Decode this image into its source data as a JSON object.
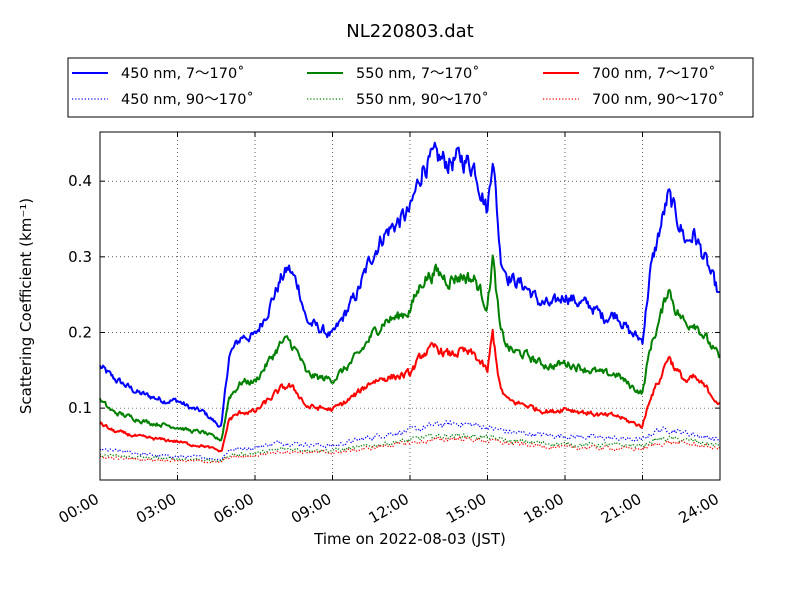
{
  "chart_data": {
    "type": "line",
    "title": "NL220803.dat",
    "xlabel": "Time on 2022-08-03 (JST)",
    "ylabel": "Scattering Coefficient (km⁻¹)",
    "xlim": [
      0,
      24
    ],
    "ylim": [
      0.005,
      0.465
    ],
    "x_ticks": [
      0,
      3,
      6,
      9,
      12,
      15,
      18,
      21,
      24
    ],
    "x_tick_labels": [
      "00:00",
      "03:00",
      "06:00",
      "09:00",
      "12:00",
      "15:00",
      "18:00",
      "21:00",
      "24:00"
    ],
    "y_ticks": [
      0.1,
      0.2,
      0.3,
      0.4
    ],
    "y_tick_labels": [
      "0.1",
      "0.2",
      "0.3",
      "0.4"
    ],
    "grid": true,
    "legend_position": "top (outside plot, 3 columns)",
    "series": [
      {
        "name": "450 nm, 7～170˚",
        "color": "#0000ff",
        "style": "solid",
        "x": [
          0,
          0.5,
          1,
          1.5,
          2,
          2.5,
          3,
          3.5,
          4,
          4.5,
          4.7,
          5,
          5.5,
          6,
          6.5,
          7,
          7.3,
          7.7,
          8,
          8.5,
          9,
          9.5,
          10,
          10.5,
          11,
          11.5,
          12,
          12.5,
          13,
          13.5,
          14,
          14.5,
          15,
          15.2,
          15.5,
          15.8,
          16,
          16.5,
          17,
          17.5,
          18,
          18.5,
          19,
          19.5,
          20,
          20.5,
          21,
          21.3,
          21.7,
          22,
          22.3,
          22.7,
          23,
          23.5,
          24
        ],
        "values": [
          0.155,
          0.14,
          0.13,
          0.12,
          0.115,
          0.11,
          0.11,
          0.1,
          0.095,
          0.08,
          0.075,
          0.17,
          0.195,
          0.195,
          0.23,
          0.27,
          0.285,
          0.26,
          0.215,
          0.205,
          0.195,
          0.225,
          0.255,
          0.3,
          0.33,
          0.345,
          0.36,
          0.42,
          0.43,
          0.425,
          0.43,
          0.42,
          0.36,
          0.44,
          0.3,
          0.275,
          0.27,
          0.26,
          0.24,
          0.235,
          0.25,
          0.24,
          0.235,
          0.22,
          0.225,
          0.2,
          0.19,
          0.28,
          0.34,
          0.38,
          0.355,
          0.32,
          0.33,
          0.29,
          0.245
        ]
      },
      {
        "name": "450 nm, 90～170˚",
        "color": "#0000ff",
        "style": "dotted",
        "x": [
          0,
          1,
          2,
          3,
          4,
          4.5,
          4.7,
          5,
          6,
          7,
          8,
          9,
          10,
          11,
          12,
          13,
          14,
          15,
          15.3,
          16,
          17,
          18,
          19,
          20,
          21,
          21.5,
          22,
          23,
          24
        ],
        "values": [
          0.045,
          0.042,
          0.038,
          0.036,
          0.035,
          0.032,
          0.033,
          0.045,
          0.048,
          0.055,
          0.052,
          0.05,
          0.058,
          0.065,
          0.07,
          0.078,
          0.08,
          0.075,
          0.072,
          0.068,
          0.065,
          0.063,
          0.062,
          0.06,
          0.058,
          0.07,
          0.072,
          0.065,
          0.058
        ]
      },
      {
        "name": "550 nm, 7～170˚",
        "color": "#008000",
        "style": "solid",
        "x": [
          0,
          0.5,
          1,
          1.5,
          2,
          2.5,
          3,
          3.5,
          4,
          4.5,
          4.7,
          5,
          5.5,
          6,
          6.5,
          7,
          7.3,
          7.7,
          8,
          8.5,
          9,
          9.5,
          10,
          10.5,
          11,
          11.5,
          12,
          12.5,
          13,
          13.5,
          14,
          14.5,
          15,
          15.2,
          15.5,
          15.8,
          16,
          16.5,
          17,
          17.5,
          18,
          18.5,
          19,
          19.5,
          20,
          20.5,
          21,
          21.3,
          21.7,
          22,
          22.3,
          22.7,
          23,
          23.5,
          24
        ],
        "values": [
          0.11,
          0.095,
          0.09,
          0.085,
          0.08,
          0.078,
          0.075,
          0.07,
          0.068,
          0.06,
          0.058,
          0.115,
          0.135,
          0.135,
          0.16,
          0.185,
          0.19,
          0.17,
          0.145,
          0.14,
          0.138,
          0.152,
          0.17,
          0.195,
          0.215,
          0.22,
          0.23,
          0.27,
          0.28,
          0.27,
          0.275,
          0.27,
          0.235,
          0.3,
          0.2,
          0.18,
          0.175,
          0.17,
          0.16,
          0.155,
          0.16,
          0.155,
          0.15,
          0.145,
          0.145,
          0.13,
          0.12,
          0.18,
          0.22,
          0.26,
          0.23,
          0.21,
          0.215,
          0.19,
          0.165
        ]
      },
      {
        "name": "550 nm, 90～170˚",
        "color": "#008000",
        "style": "dotted",
        "x": [
          0,
          1,
          2,
          3,
          4,
          4.5,
          4.7,
          5,
          6,
          7,
          8,
          9,
          10,
          11,
          12,
          13,
          14,
          15,
          15.3,
          16,
          17,
          18,
          19,
          20,
          21,
          21.5,
          22,
          23,
          24
        ],
        "values": [
          0.038,
          0.036,
          0.034,
          0.033,
          0.032,
          0.03,
          0.031,
          0.038,
          0.04,
          0.046,
          0.045,
          0.044,
          0.048,
          0.053,
          0.058,
          0.063,
          0.064,
          0.061,
          0.06,
          0.056,
          0.054,
          0.052,
          0.052,
          0.051,
          0.05,
          0.058,
          0.06,
          0.056,
          0.05
        ]
      },
      {
        "name": "700 nm, 7～170˚",
        "color": "#ff0000",
        "style": "solid",
        "x": [
          0,
          0.5,
          1,
          1.5,
          2,
          2.5,
          3,
          3.5,
          4,
          4.5,
          4.7,
          5,
          5.5,
          6,
          6.5,
          7,
          7.3,
          7.7,
          8,
          8.5,
          9,
          9.5,
          10,
          10.5,
          11,
          11.5,
          12,
          12.5,
          13,
          13.5,
          14,
          14.5,
          15,
          15.2,
          15.5,
          15.8,
          16,
          16.5,
          17,
          17.5,
          18,
          18.5,
          19,
          19.5,
          20,
          20.5,
          21,
          21.3,
          21.7,
          22,
          22.3,
          22.7,
          23,
          23.5,
          24
        ],
        "values": [
          0.08,
          0.07,
          0.066,
          0.062,
          0.06,
          0.058,
          0.056,
          0.052,
          0.05,
          0.045,
          0.042,
          0.085,
          0.095,
          0.095,
          0.11,
          0.125,
          0.13,
          0.118,
          0.102,
          0.1,
          0.098,
          0.108,
          0.12,
          0.135,
          0.14,
          0.142,
          0.145,
          0.172,
          0.18,
          0.17,
          0.175,
          0.17,
          0.148,
          0.2,
          0.125,
          0.11,
          0.108,
          0.104,
          0.098,
          0.095,
          0.1,
          0.096,
          0.093,
          0.09,
          0.09,
          0.082,
          0.076,
          0.115,
          0.14,
          0.17,
          0.15,
          0.135,
          0.14,
          0.125,
          0.105
        ]
      },
      {
        "name": "700 nm, 90～170˚",
        "color": "#ff0000",
        "style": "dotted",
        "x": [
          0,
          1,
          2,
          3,
          4,
          4.5,
          4.7,
          5,
          6,
          7,
          8,
          9,
          10,
          11,
          12,
          13,
          14,
          15,
          15.3,
          16,
          17,
          18,
          19,
          20,
          21,
          21.5,
          22,
          23,
          24
        ],
        "values": [
          0.035,
          0.033,
          0.032,
          0.031,
          0.03,
          0.028,
          0.029,
          0.035,
          0.037,
          0.043,
          0.042,
          0.041,
          0.045,
          0.05,
          0.054,
          0.058,
          0.06,
          0.057,
          0.056,
          0.053,
          0.05,
          0.048,
          0.048,
          0.047,
          0.046,
          0.052,
          0.055,
          0.052,
          0.046
        ]
      }
    ]
  }
}
